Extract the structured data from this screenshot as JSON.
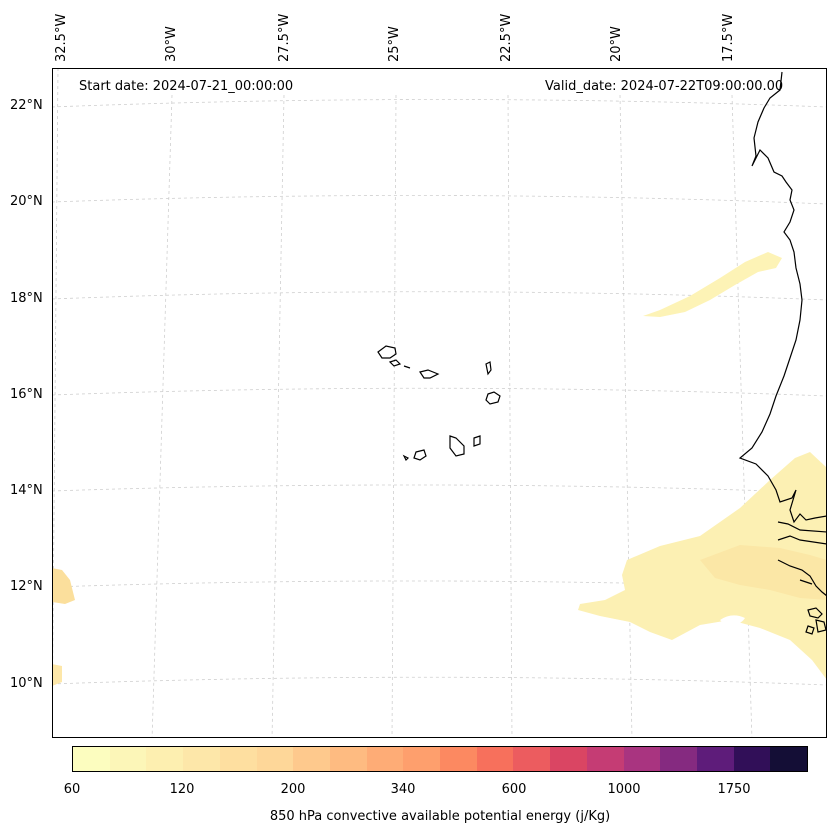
{
  "header": {
    "start_date": "Start date: 2024-07-21_00:00:00",
    "valid_date": "Valid_date: 2024-07-22T09:00:00.00"
  },
  "lon_labels": [
    "32.5°W",
    "30°W",
    "27.5°W",
    "25°W",
    "22.5°W",
    "20°W",
    "17.5°W"
  ],
  "lat_labels": [
    "22°N",
    "20°N",
    "18°N",
    "16°N",
    "14°N",
    "12°N",
    "10°N"
  ],
  "colorbar": {
    "ticks": [
      "60",
      "120",
      "200",
      "340",
      "600",
      "1000",
      "1750"
    ],
    "label": "850 hPa convective available potential energy (j/Kg)",
    "colors": [
      "#fcfdbf",
      "#fcf6b8",
      "#fdefb0",
      "#fde7a9",
      "#fedfa0",
      "#fed799",
      "#fec98d",
      "#febb81",
      "#feac76",
      "#fe9f6d",
      "#fc8961",
      "#f7705c",
      "#ec5c5f",
      "#da4563",
      "#c53c74",
      "#a93480",
      "#852a80",
      "#5e1c7a",
      "#310f58",
      "#140e36"
    ]
  }
}
